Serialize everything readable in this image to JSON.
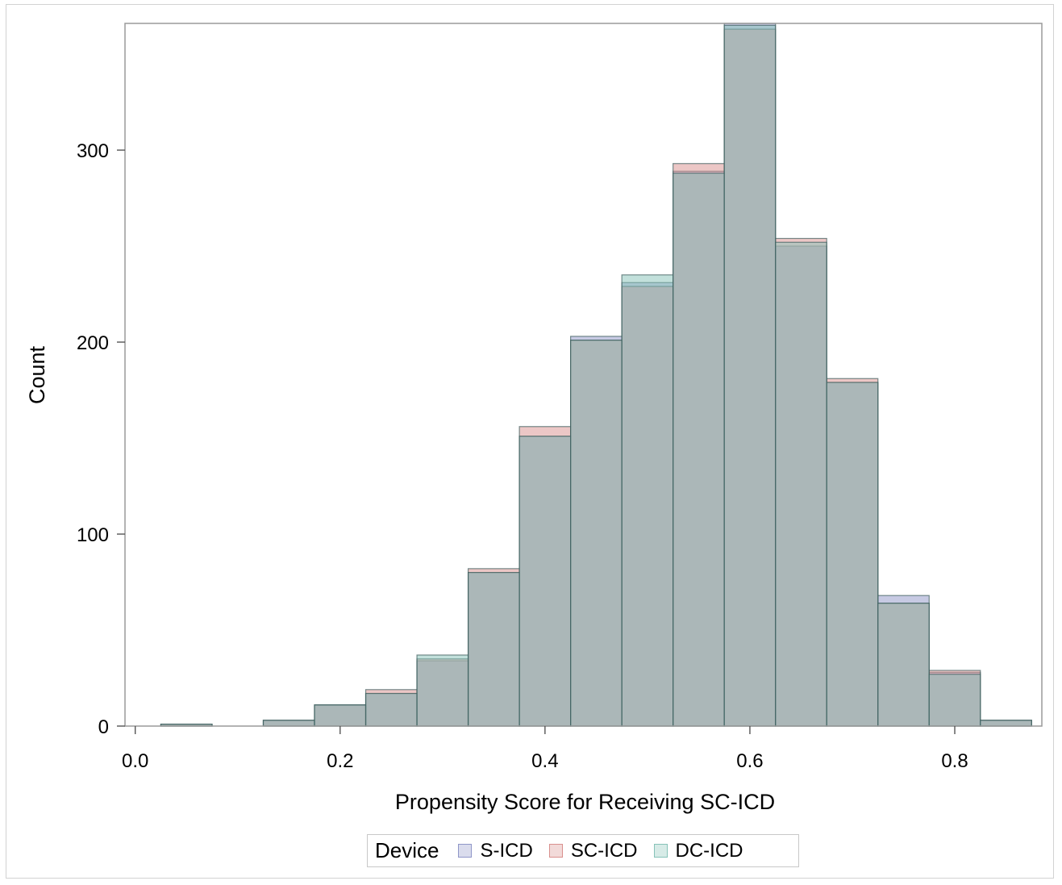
{
  "chart_data": {
    "type": "histogram",
    "title": "",
    "xlabel": "Propensity Score for Receiving SC-ICD",
    "ylabel": "Count",
    "xlim": [
      -0.01,
      0.885
    ],
    "ylim": [
      0,
      366
    ],
    "x_ticks": [
      "0.0",
      "0.2",
      "0.4",
      "0.6",
      "0.8"
    ],
    "x_tick_values": [
      0.0,
      0.2,
      0.4,
      0.6,
      0.8
    ],
    "y_ticks": [
      "0",
      "100",
      "200",
      "300"
    ],
    "y_tick_values": [
      0,
      100,
      200,
      300
    ],
    "bin_width": 0.05,
    "bin_centers": [
      0.05,
      0.1,
      0.15,
      0.2,
      0.25,
      0.3,
      0.35,
      0.4,
      0.45,
      0.5,
      0.55,
      0.6,
      0.65,
      0.7,
      0.75,
      0.8,
      0.85
    ],
    "legend_title": "Device",
    "legend_position": "bottom",
    "series": [
      {
        "name": "S-ICD",
        "color": "#8f96c8",
        "values": [
          1,
          0,
          3,
          11,
          17,
          34,
          80,
          151,
          203,
          231,
          289,
          366,
          250,
          179,
          68,
          28,
          3
        ]
      },
      {
        "name": "SC-ICD",
        "color": "#d9908d",
        "values": [
          1,
          0,
          3,
          11,
          19,
          35,
          82,
          156,
          201,
          229,
          293,
          363,
          254,
          181,
          64,
          29,
          3
        ]
      },
      {
        "name": "DC-ICD",
        "color": "#86c2b8",
        "values": [
          1,
          0,
          3,
          11,
          17,
          37,
          80,
          151,
          201,
          235,
          288,
          365,
          252,
          179,
          64,
          27,
          3
        ]
      }
    ],
    "grid": false
  }
}
